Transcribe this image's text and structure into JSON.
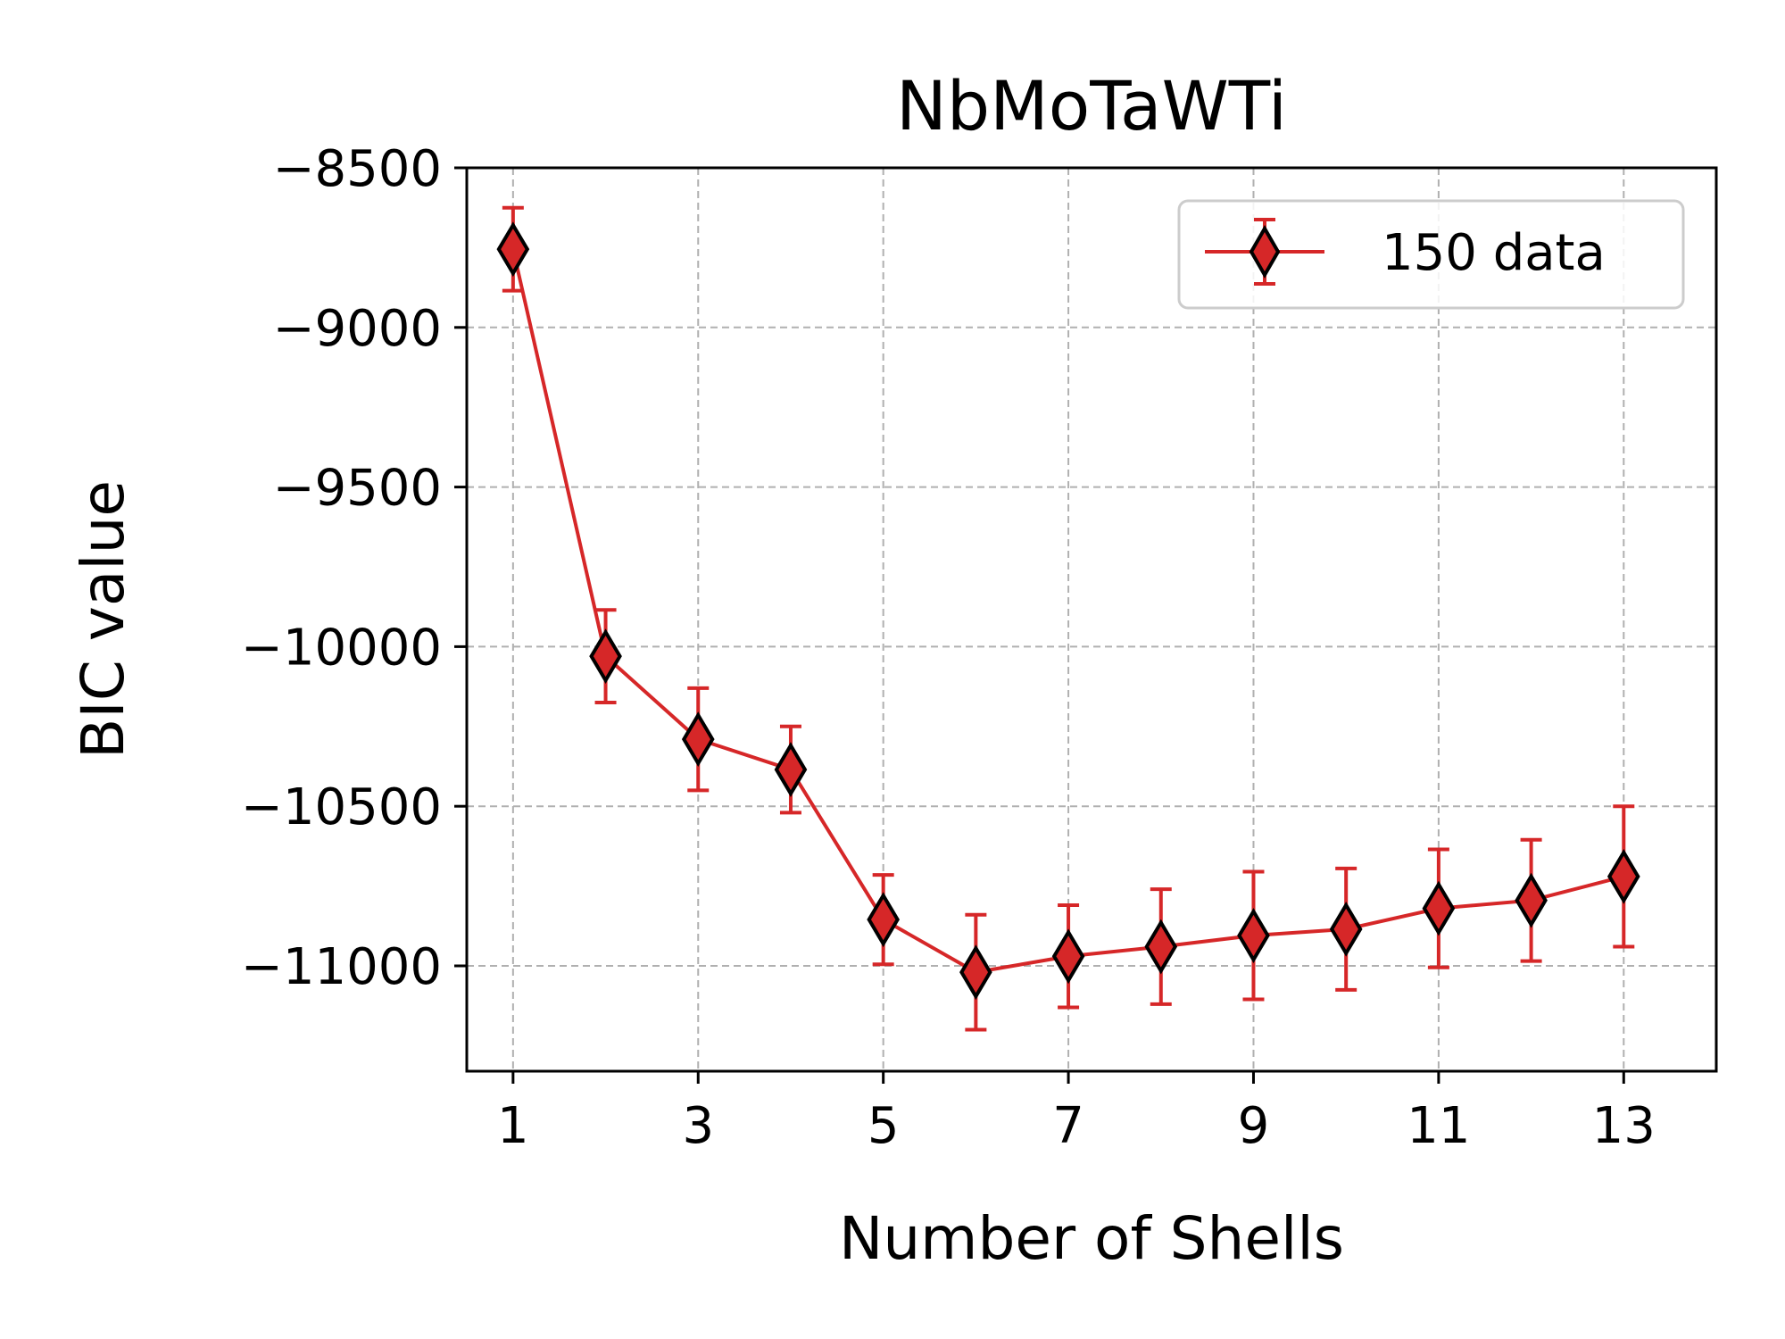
{
  "chart_data": {
    "type": "line",
    "title": "NbMoTaWTi",
    "xlabel": "Number of Shells",
    "ylabel": "BIC value",
    "xlim": [
      0.5,
      14.0
    ],
    "ylim": [
      -11330,
      -8500
    ],
    "xticks": [
      1,
      3,
      5,
      7,
      9,
      11,
      13
    ],
    "yticks": [
      -8500,
      -9000,
      -9500,
      -10000,
      -10500,
      -11000
    ],
    "ytick_labels": [
      "−8500",
      "−9000",
      "−9500",
      "−10000",
      "−10500",
      "−11000"
    ],
    "grid": true,
    "legend_position": "top-right",
    "color": "#d62728",
    "series": [
      {
        "name": "150 data",
        "x": [
          1,
          2,
          3,
          4,
          5,
          6,
          7,
          8,
          9,
          10,
          11,
          12,
          13
        ],
        "y": [
          -8755,
          -10030,
          -10290,
          -10385,
          -10855,
          -11020,
          -10970,
          -10940,
          -10905,
          -10885,
          -10820,
          -10795,
          -10720
        ],
        "error": [
          130,
          145,
          160,
          135,
          140,
          180,
          160,
          180,
          200,
          190,
          185,
          190,
          220
        ]
      }
    ]
  }
}
